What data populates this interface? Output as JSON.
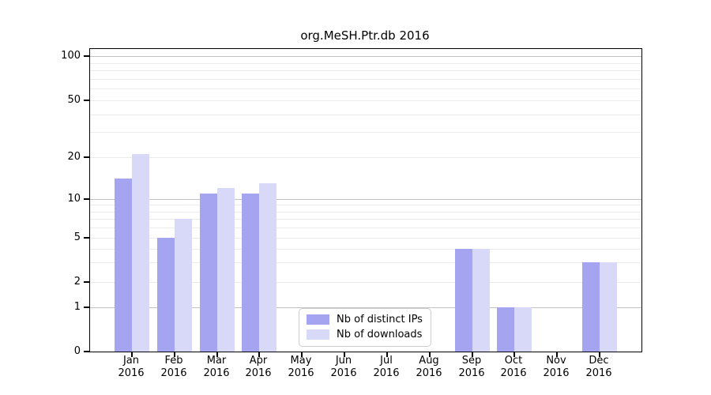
{
  "title": "org.MeSH.Ptr.db 2016",
  "colors": {
    "bar_dark": "#a4a4f0",
    "bar_light": "#d8d8f8",
    "grid_minor": "#ebebeb",
    "grid_major": "#c2c2c2",
    "axis": "#000000",
    "legend_border": "#cccccc",
    "background": "#ffffff",
    "text": "#000000"
  },
  "legend": {
    "items": [
      {
        "label": "Nb of distinct IPs",
        "color": "#a4a4f0"
      },
      {
        "label": "Nb of downloads",
        "color": "#d8d8f8"
      }
    ]
  },
  "chart_data": {
    "type": "bar",
    "title": "org.MeSH.Ptr.db 2016",
    "months": [
      "Jan",
      "Feb",
      "Mar",
      "Apr",
      "May",
      "Jun",
      "Jul",
      "Aug",
      "Sep",
      "Oct",
      "Nov",
      "Dec"
    ],
    "year": "2016",
    "categories": [
      "Jan 2016",
      "Feb 2016",
      "Mar 2016",
      "Apr 2016",
      "May 2016",
      "Jun 2016",
      "Jul 2016",
      "Aug 2016",
      "Sep 2016",
      "Oct 2016",
      "Nov 2016",
      "Dec 2016"
    ],
    "series": [
      {
        "name": "Nb of distinct IPs",
        "key": "distinct-ips",
        "color": "#a4a4f0",
        "values": [
          14,
          5,
          11,
          11,
          0,
          0,
          0,
          0,
          4,
          1,
          0,
          3
        ]
      },
      {
        "name": "Nb of downloads",
        "key": "downloads",
        "color": "#d8d8f8",
        "values": [
          21,
          7,
          12,
          13,
          0,
          0,
          0,
          0,
          4,
          1,
          0,
          3
        ]
      }
    ],
    "y_ticks": [
      0,
      1,
      2,
      5,
      10,
      20,
      50,
      100
    ],
    "y_minor_gridlines": [
      2,
      3,
      4,
      5,
      6,
      7,
      8,
      9,
      20,
      30,
      40,
      50,
      60,
      70,
      80,
      90
    ],
    "y_major_gridlines": [
      1,
      10,
      100
    ],
    "y_scale": "log-above-1, 0 pinned to baseline",
    "ylim": [
      0,
      100
    ],
    "grid": true,
    "legend_position": "lower center"
  }
}
